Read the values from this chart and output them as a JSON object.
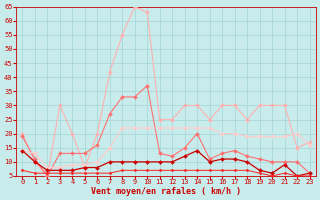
{
  "x": [
    0,
    1,
    2,
    3,
    4,
    5,
    6,
    7,
    8,
    9,
    10,
    11,
    12,
    13,
    14,
    15,
    16,
    17,
    18,
    19,
    20,
    21,
    22,
    23
  ],
  "series": [
    {
      "label": "rafales_light",
      "color": "#FFB0B0",
      "lw": 0.8,
      "marker": "D",
      "markersize": 2,
      "values": [
        20,
        10,
        5,
        30,
        20,
        8,
        20,
        42,
        55,
        65,
        63,
        25,
        25,
        30,
        30,
        25,
        30,
        30,
        25,
        30,
        30,
        30,
        15,
        17
      ]
    },
    {
      "label": "rafales_medium",
      "color": "#FF7070",
      "lw": 0.8,
      "marker": "D",
      "markersize": 2,
      "values": [
        19,
        11,
        5,
        13,
        13,
        13,
        16,
        27,
        33,
        33,
        37,
        13,
        12,
        15,
        20,
        11,
        13,
        14,
        12,
        11,
        10,
        10,
        10,
        6
      ]
    },
    {
      "label": "vent_light",
      "color": "#FFCCCC",
      "lw": 0.8,
      "marker": "D",
      "markersize": 2,
      "values": [
        14,
        13,
        8,
        8,
        9,
        9,
        10,
        15,
        22,
        22,
        22,
        22,
        22,
        22,
        22,
        22,
        20,
        20,
        19,
        19,
        19,
        19,
        20,
        16
      ]
    },
    {
      "label": "vent_dark",
      "color": "#CC0000",
      "lw": 0.9,
      "marker": "D",
      "markersize": 2,
      "values": [
        14,
        10,
        7,
        7,
        7,
        8,
        8,
        10,
        10,
        10,
        10,
        10,
        10,
        12,
        14,
        10,
        11,
        11,
        10,
        7,
        6,
        9,
        5,
        6
      ]
    },
    {
      "label": "vent_base1",
      "color": "#FF2020",
      "lw": 0.7,
      "marker": "D",
      "markersize": 1.5,
      "values": [
        7,
        6,
        6,
        6,
        6,
        6,
        6,
        6,
        7,
        7,
        7,
        7,
        7,
        7,
        7,
        7,
        7,
        7,
        7,
        6,
        5,
        6,
        5,
        5
      ]
    },
    {
      "label": "vent_base2",
      "color": "#FF4444",
      "lw": 0.7,
      "marker": null,
      "markersize": 0,
      "values": [
        5,
        5,
        5,
        5,
        5,
        5,
        5,
        5,
        5,
        5,
        5,
        5,
        5,
        5,
        5,
        5,
        5,
        5,
        5,
        5,
        5,
        5,
        5,
        5
      ]
    }
  ],
  "ylim": [
    5,
    65
  ],
  "yticks": [
    5,
    10,
    15,
    20,
    25,
    30,
    35,
    40,
    45,
    50,
    55,
    60,
    65
  ],
  "xticks": [
    0,
    1,
    2,
    3,
    4,
    5,
    6,
    7,
    8,
    9,
    10,
    11,
    12,
    13,
    14,
    15,
    16,
    17,
    18,
    19,
    20,
    21,
    22,
    23
  ],
  "xlabel": "Vent moyen/en rafales ( km/h )",
  "bg_color": "#C8ECEC",
  "grid_color": "#A8D8D8",
  "xlabel_color": "#CC0000",
  "tick_color": "#CC0000",
  "axis_color": "#CC0000"
}
